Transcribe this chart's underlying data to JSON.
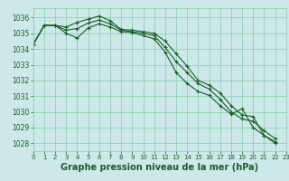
{
  "background_color": "#cce8e8",
  "plot_bg_color": "#cce8e8",
  "grid_color": "#88ccaa",
  "line_color": "#1a5c2a",
  "xlabel": "Graphe pression niveau de la mer (hPa)",
  "xlabel_fontsize": 7,
  "ylim": [
    1027.5,
    1036.6
  ],
  "xlim": [
    0,
    23
  ],
  "yticks": [
    1028,
    1029,
    1030,
    1031,
    1032,
    1033,
    1034,
    1035,
    1036
  ],
  "xticks": [
    0,
    1,
    2,
    3,
    4,
    5,
    6,
    7,
    8,
    9,
    10,
    11,
    12,
    13,
    14,
    15,
    16,
    17,
    18,
    19,
    20,
    21,
    22,
    23
  ],
  "series": [
    [
      1034.3,
      1035.5,
      1035.5,
      1035.4,
      1035.7,
      1035.9,
      1036.1,
      1035.8,
      1035.25,
      1035.2,
      1035.1,
      1035.0,
      1034.5,
      1033.7,
      1032.9,
      1032.0,
      1031.7,
      1031.2,
      1030.4,
      1029.8,
      1029.7,
      1028.5,
      1028.1
    ],
    [
      1034.3,
      1035.5,
      1035.5,
      1035.2,
      1035.3,
      1035.65,
      1035.85,
      1035.6,
      1035.2,
      1035.1,
      1035.0,
      1034.85,
      1034.1,
      1033.2,
      1032.5,
      1031.8,
      1031.45,
      1030.8,
      1030.0,
      1029.55,
      1029.4,
      1028.8,
      1028.3
    ],
    [
      1034.3,
      1035.5,
      1035.5,
      1035.0,
      1034.7,
      1035.35,
      1035.6,
      1035.4,
      1035.1,
      1035.05,
      1034.85,
      1034.65,
      1033.8,
      1032.5,
      1031.8,
      1031.3,
      1031.05,
      1030.4,
      1029.85,
      1030.2,
      1029.0,
      1028.5,
      1028.0
    ]
  ],
  "marker": "+",
  "markersize": 3.5,
  "linewidth": 0.8
}
